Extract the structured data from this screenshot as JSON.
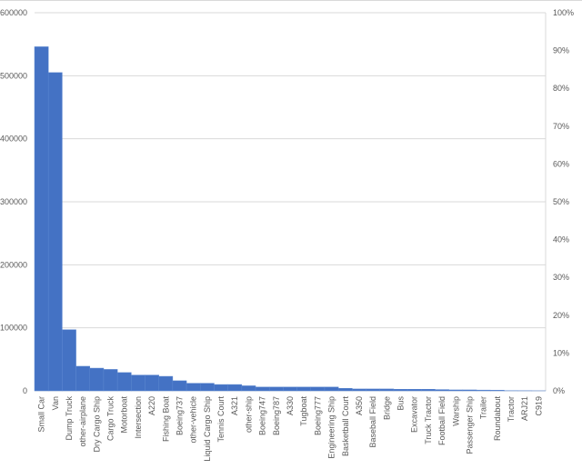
{
  "chart_data": {
    "type": "bar",
    "title": "",
    "xlabel": "",
    "ylabel": "",
    "ylim": [
      0,
      600000
    ],
    "y_ticks": [
      "0",
      "100000",
      "200000",
      "300000",
      "400000",
      "500000",
      "600000"
    ],
    "y2lim": [
      0,
      100
    ],
    "y2_ticks": [
      "0%",
      "10%",
      "20%",
      "30%",
      "40%",
      "50%",
      "60%",
      "70%",
      "80%",
      "90%",
      "100%"
    ],
    "grid": true,
    "bar_color": "#4472C4",
    "categories": [
      "Small Car",
      "Van",
      "Dump Truck",
      "other-airplane",
      "Dry Cargo Ship",
      "Cargo Truck",
      "Motorboat",
      "Intersection",
      "A220",
      "Fishing Boat",
      "Boeing737",
      "other-vehicle",
      "Liquid Cargo Ship",
      "Tennis Court",
      "A321",
      "other-ship",
      "Boeing747",
      "Boeing787",
      "A330",
      "Tugboat",
      "Boeing777",
      "Engineering Ship",
      "Basketball Court",
      "A350",
      "Baseball Field",
      "Bridge",
      "Bus",
      "Excavator",
      "Truck Tractor",
      "Football Field",
      "Warship",
      "Passenger Ship",
      "Trailer",
      "Roundabout",
      "Tractor",
      "ARJ21",
      "C919"
    ],
    "values": [
      546000,
      505000,
      97000,
      39000,
      36000,
      34000,
      29000,
      25000,
      25000,
      23000,
      16000,
      12000,
      12000,
      10000,
      10000,
      8000,
      6000,
      6000,
      6000,
      6000,
      6000,
      6000,
      4000,
      3000,
      3000,
      3000,
      2500,
      2500,
      2500,
      2000,
      1500,
      1500,
      1200,
      1000,
      300,
      200,
      100
    ]
  }
}
